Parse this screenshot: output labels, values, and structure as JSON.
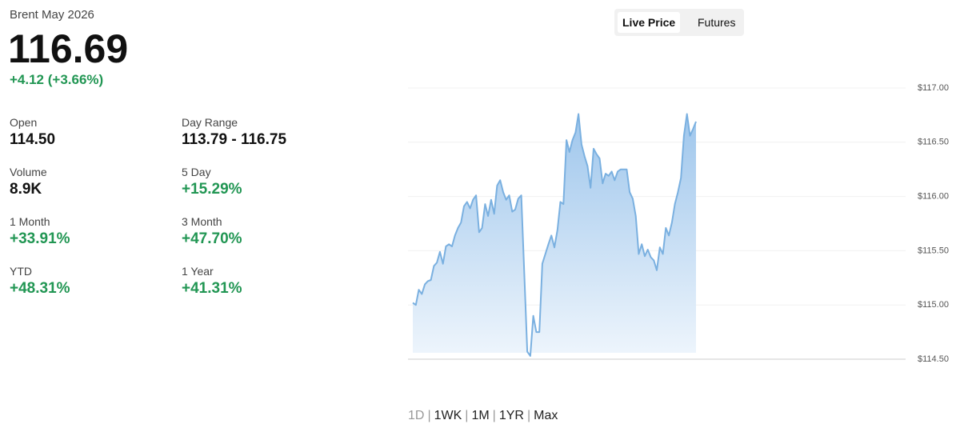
{
  "header": {
    "title": "Brent May 2026",
    "price": "116.69",
    "change": "+4.12 (+3.66%)"
  },
  "stats": [
    {
      "label": "Open",
      "value": "114.50"
    },
    {
      "label": "Day Range",
      "value": "113.79 - 116.75"
    },
    {
      "label": "Volume",
      "value": "8.9K"
    },
    {
      "label": "5 Day",
      "value": "+15.29%"
    },
    {
      "label": "1 Month",
      "value": "+33.91%"
    },
    {
      "label": "3 Month",
      "value": "+47.70%"
    },
    {
      "label": "YTD",
      "value": "+48.31%"
    },
    {
      "label": "1 Year",
      "value": "+41.31%"
    }
  ],
  "tabs": [
    "Live Price",
    "Futures"
  ],
  "ranges": [
    "1D",
    "1WK",
    "1M",
    "1YR",
    "Max"
  ],
  "range_separator": "|",
  "chart": {
    "type": "area",
    "color": "#7ab0e0",
    "ylim": [
      114.5,
      117
    ],
    "yticks": [
      {
        "value": 114.5,
        "label": "$114.50"
      },
      {
        "value": 115,
        "label": "$115.00"
      },
      {
        "value": 115.5,
        "label": "$115.50"
      },
      {
        "value": 116,
        "label": "$116.00"
      },
      {
        "value": 116.5,
        "label": "$116.50"
      },
      {
        "value": 117,
        "label": "$117.00"
      }
    ],
    "grid": true,
    "values": [
      115.02,
      115.0,
      115.14,
      115.1,
      115.19,
      115.22,
      115.23,
      115.36,
      115.39,
      115.49,
      115.38,
      115.54,
      115.56,
      115.54,
      115.64,
      115.71,
      115.76,
      115.91,
      115.95,
      115.89,
      115.97,
      116.01,
      115.67,
      115.71,
      115.93,
      115.82,
      115.97,
      115.84,
      116.1,
      116.15,
      116.04,
      115.97,
      116.01,
      115.86,
      115.88,
      115.98,
      116.01,
      115.3,
      114.57,
      114.53,
      114.9,
      114.75,
      114.75,
      115.38,
      115.47,
      115.56,
      115.64,
      115.53,
      115.69,
      115.95,
      115.93,
      116.52,
      116.41,
      116.52,
      116.59,
      116.76,
      116.48,
      116.37,
      116.28,
      116.08,
      116.44,
      116.39,
      116.35,
      116.12,
      116.21,
      116.19,
      116.23,
      116.15,
      116.23,
      116.25,
      116.25,
      116.25,
      116.04,
      115.98,
      115.82,
      115.47,
      115.56,
      115.45,
      115.51,
      115.44,
      115.41,
      115.32,
      115.53,
      115.47,
      115.71,
      115.64,
      115.76,
      115.93,
      116.04,
      116.17,
      116.56,
      116.76,
      116.56,
      116.62,
      116.69
    ]
  }
}
